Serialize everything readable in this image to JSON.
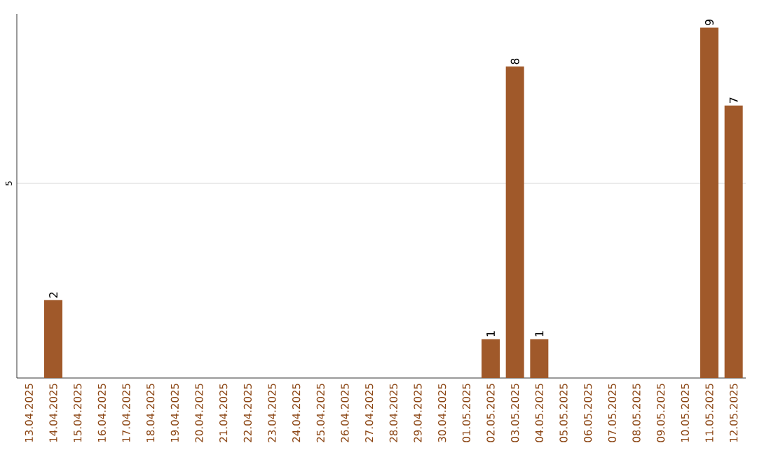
{
  "chart_data": {
    "type": "bar",
    "categories": [
      "13.04.2025",
      "14.04.2025",
      "15.04.2025",
      "16.04.2025",
      "17.04.2025",
      "18.04.2025",
      "19.04.2025",
      "20.04.2025",
      "21.04.2025",
      "22.04.2025",
      "23.04.2025",
      "24.04.2025",
      "25.04.2025",
      "26.04.2025",
      "27.04.2025",
      "28.04.2025",
      "29.04.2025",
      "30.04.2025",
      "01.05.2025",
      "02.05.2025",
      "03.05.2025",
      "04.05.2025",
      "05.05.2025",
      "06.05.2025",
      "07.05.2025",
      "08.05.2025",
      "09.05.2025",
      "10.05.2025",
      "11.05.2025",
      "12.05.2025"
    ],
    "values": [
      null,
      2,
      null,
      null,
      null,
      null,
      null,
      null,
      null,
      null,
      null,
      null,
      null,
      null,
      null,
      null,
      null,
      null,
      null,
      1,
      8,
      1,
      null,
      null,
      null,
      null,
      null,
      null,
      9,
      7
    ],
    "color": "#a0592a",
    "ylim": [
      0,
      9.35
    ],
    "yticks": [
      5
    ],
    "grid": "y",
    "data_labels": true
  }
}
